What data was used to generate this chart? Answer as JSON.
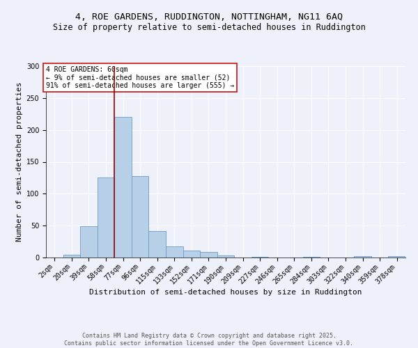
{
  "title_line1": "4, ROE GARDENS, RUDDINGTON, NOTTINGHAM, NG11 6AQ",
  "title_line2": "Size of property relative to semi-detached houses in Ruddington",
  "xlabel": "Distribution of semi-detached houses by size in Ruddington",
  "ylabel": "Number of semi-detached properties",
  "categories": [
    "2sqm",
    "20sqm",
    "39sqm",
    "58sqm",
    "77sqm",
    "96sqm",
    "115sqm",
    "133sqm",
    "152sqm",
    "171sqm",
    "190sqm",
    "209sqm",
    "227sqm",
    "246sqm",
    "265sqm",
    "284sqm",
    "303sqm",
    "322sqm",
    "340sqm",
    "359sqm",
    "378sqm"
  ],
  "values": [
    0,
    4,
    49,
    126,
    220,
    128,
    41,
    18,
    11,
    9,
    3,
    0,
    1,
    0,
    0,
    1,
    0,
    0,
    2,
    0,
    2
  ],
  "bar_color": "#b8cfe8",
  "bar_edge_color": "#6a9cc8",
  "vline_color": "#990000",
  "vline_position": 3.5,
  "annotation_text": "4 ROE GARDENS: 60sqm\n← 9% of semi-detached houses are smaller (52)\n91% of semi-detached houses are larger (555) →",
  "annotation_box_facecolor": "#ffffff",
  "annotation_box_edgecolor": "#cc1111",
  "ylim": [
    0,
    300
  ],
  "yticks": [
    0,
    50,
    100,
    150,
    200,
    250,
    300
  ],
  "background_color": "#eef1f9",
  "grid_color": "#ffffff",
  "footer_text": "Contains HM Land Registry data © Crown copyright and database right 2025.\nContains public sector information licensed under the Open Government Licence v3.0.",
  "title_fontsize": 9.5,
  "subtitle_fontsize": 8.5,
  "annotation_fontsize": 7,
  "axis_label_fontsize": 8,
  "tick_fontsize": 7,
  "ylabel_fontsize": 8,
  "footer_fontsize": 6
}
